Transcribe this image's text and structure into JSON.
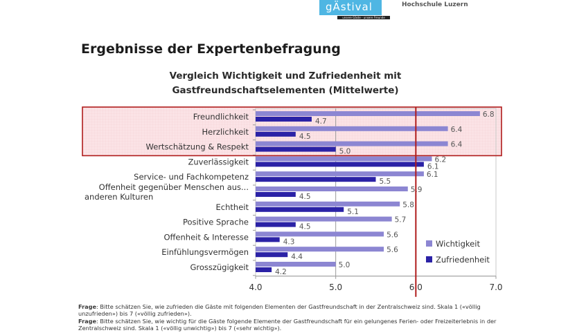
{
  "header": {
    "logo_text": "gÄstival",
    "logo_tagline": "unsere Gäste - unsere Freunde",
    "institution": "Hochschule Luzern"
  },
  "page_title": "Ergebnisse der Expertenbefragung",
  "footnotes": [
    {
      "label": "Frage",
      "text": ": Bitte schätzen Sie, wie zufrieden die Gäste mit folgenden Elementen der Gastfreundschaft in der Zentralschweiz sind. Skala 1 («völlig unzufrieden») bis 7 («völlig zufrieden»)."
    },
    {
      "label": "Frage",
      "text": ": Bitte schätzen Sie, wie wichtig für die Gäste folgende Elemente der Gastfreundschaft für ein gelungenes Ferien- oder Freizeiterlebnis in der Zentralschweiz sind. Skala 1 («völlig unwichtig») bis 7 («sehr wichtig»)."
    }
  ],
  "chart_data": {
    "type": "bar",
    "orientation": "horizontal",
    "title": "Vergleich Wichtigkeit und Zufriedenheit mit Gastfreundschaftselementen (Mittelwerte)",
    "title_lines": [
      "Vergleich Wichtigkeit und Zufriedenheit mit",
      "Gastfreundschaftselementen (Mittelwerte)"
    ],
    "categories": [
      "Freundlichkeit",
      "Herzlichkeit",
      "Wertschätzung & Respekt",
      "Zuverlässigkeit",
      "Service- und Fachkompetenz",
      "Offenheit gegenüber Menschen aus anderen Kulturen",
      "Echtheit",
      "Positive Sprache",
      "Offenheit & Interesse",
      "Einfühlungsvermögen",
      "Grosszügigkeit"
    ],
    "category_display": [
      [
        "Freundlichkeit"
      ],
      [
        "Herzlichkeit"
      ],
      [
        "Wertschätzung & Respekt"
      ],
      [
        "Zuverlässigkeit"
      ],
      [
        "Service- und Fachkompetenz"
      ],
      [
        "Offenheit gegenüber Menschen aus...",
        "anderen Kulturen"
      ],
      [
        "Echtheit"
      ],
      [
        "Positive Sprache"
      ],
      [
        "Offenheit & Interesse"
      ],
      [
        "Einfühlungsvermögen"
      ],
      [
        "Grosszügigkeit"
      ]
    ],
    "series": [
      {
        "name": "Wichtigkeit",
        "color": "#8c86d2",
        "values": [
          6.8,
          6.4,
          6.4,
          6.2,
          6.1,
          5.9,
          5.8,
          5.7,
          5.6,
          5.6,
          5.0
        ]
      },
      {
        "name": "Zufriedenheit",
        "color": "#2b22a6",
        "values": [
          4.7,
          4.5,
          5.0,
          6.1,
          5.5,
          4.5,
          5.1,
          4.5,
          4.3,
          4.4,
          4.2
        ]
      }
    ],
    "xlim": [
      4.0,
      7.0
    ],
    "xticks": [
      "4.0",
      "5.0",
      "6.0",
      "7.0"
    ],
    "xlabel": "",
    "ylabel": "",
    "grid": "vertical gridline at 5.0",
    "legend": "bottom-right",
    "annotations": [
      {
        "type": "reference-line",
        "value": 6.0,
        "color": "#b01c1c"
      },
      {
        "type": "highlight-box",
        "categories": [
          "Freundlichkeit",
          "Herzlichkeit",
          "Wertschätzung & Respekt"
        ],
        "color": "#b01c1c"
      }
    ]
  }
}
